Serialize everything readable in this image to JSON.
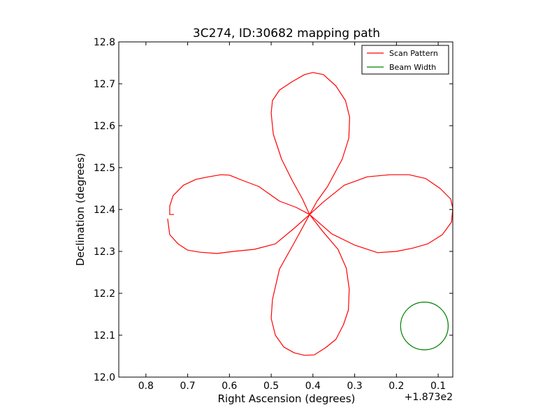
{
  "chart_data": {
    "type": "line",
    "title": "3C274, ID:30682 mapping path",
    "xlabel": "Right Ascension (degrees)",
    "ylabel": "Declination (degrees)",
    "x_offset_text": "+1.873e2",
    "xlim": [
      0.865,
      0.065
    ],
    "ylim": [
      12.0,
      12.8
    ],
    "x_ticks": [
      0.8,
      0.7,
      0.6,
      0.5,
      0.4,
      0.3,
      0.2,
      0.1
    ],
    "x_tick_labels": [
      "0.8",
      "0.7",
      "0.6",
      "0.5",
      "0.4",
      "0.3",
      "0.2",
      "0.1"
    ],
    "y_ticks": [
      12.0,
      12.1,
      12.2,
      12.3,
      12.4,
      12.5,
      12.6,
      12.7,
      12.8
    ],
    "y_tick_labels": [
      "12.0",
      "12.1",
      "12.2",
      "12.3",
      "12.4",
      "12.5",
      "12.6",
      "12.7",
      "12.8"
    ],
    "grid": false,
    "legend_position": "top-right",
    "series": [
      {
        "name": "Scan Pattern",
        "color": "#ff0000",
        "x": [
          0.733,
          0.743,
          0.743,
          0.735,
          0.71,
          0.68,
          0.65,
          0.62,
          0.6,
          0.57,
          0.53,
          0.48,
          0.44,
          0.408,
          0.425,
          0.45,
          0.475,
          0.495,
          0.5,
          0.497,
          0.48,
          0.45,
          0.42,
          0.4,
          0.375,
          0.345,
          0.322,
          0.312,
          0.314,
          0.33,
          0.365,
          0.39,
          0.408,
          0.375,
          0.325,
          0.27,
          0.215,
          0.17,
          0.13,
          0.095,
          0.07,
          0.065,
          0.068,
          0.09,
          0.125,
          0.16,
          0.2,
          0.245,
          0.3,
          0.355,
          0.408,
          0.38,
          0.34,
          0.32,
          0.313,
          0.315,
          0.327,
          0.345,
          0.37,
          0.397,
          0.42,
          0.445,
          0.47,
          0.49,
          0.5,
          0.497,
          0.48,
          0.445,
          0.408,
          0.445,
          0.49,
          0.54,
          0.59,
          0.63,
          0.67,
          0.7,
          0.723,
          0.743,
          0.748
        ],
        "y": [
          12.388,
          12.388,
          12.408,
          12.433,
          12.458,
          12.472,
          12.478,
          12.483,
          12.482,
          12.47,
          12.455,
          12.42,
          12.405,
          12.388,
          12.425,
          12.47,
          12.52,
          12.58,
          12.63,
          12.66,
          12.685,
          12.705,
          12.722,
          12.727,
          12.722,
          12.695,
          12.66,
          12.62,
          12.57,
          12.52,
          12.455,
          12.42,
          12.388,
          12.418,
          12.458,
          12.478,
          12.483,
          12.483,
          12.474,
          12.45,
          12.425,
          12.403,
          12.37,
          12.34,
          12.318,
          12.308,
          12.3,
          12.297,
          12.315,
          12.342,
          12.388,
          12.352,
          12.305,
          12.26,
          12.21,
          12.16,
          12.125,
          12.09,
          12.07,
          12.053,
          12.052,
          12.058,
          12.072,
          12.1,
          12.14,
          12.185,
          12.258,
          12.32,
          12.388,
          12.355,
          12.318,
          12.305,
          12.3,
          12.295,
          12.298,
          12.303,
          12.318,
          12.34,
          12.378
        ]
      },
      {
        "name": "Beam Width",
        "color": "#008000",
        "center": [
          0.133,
          12.122
        ],
        "radius": 0.057
      }
    ]
  }
}
